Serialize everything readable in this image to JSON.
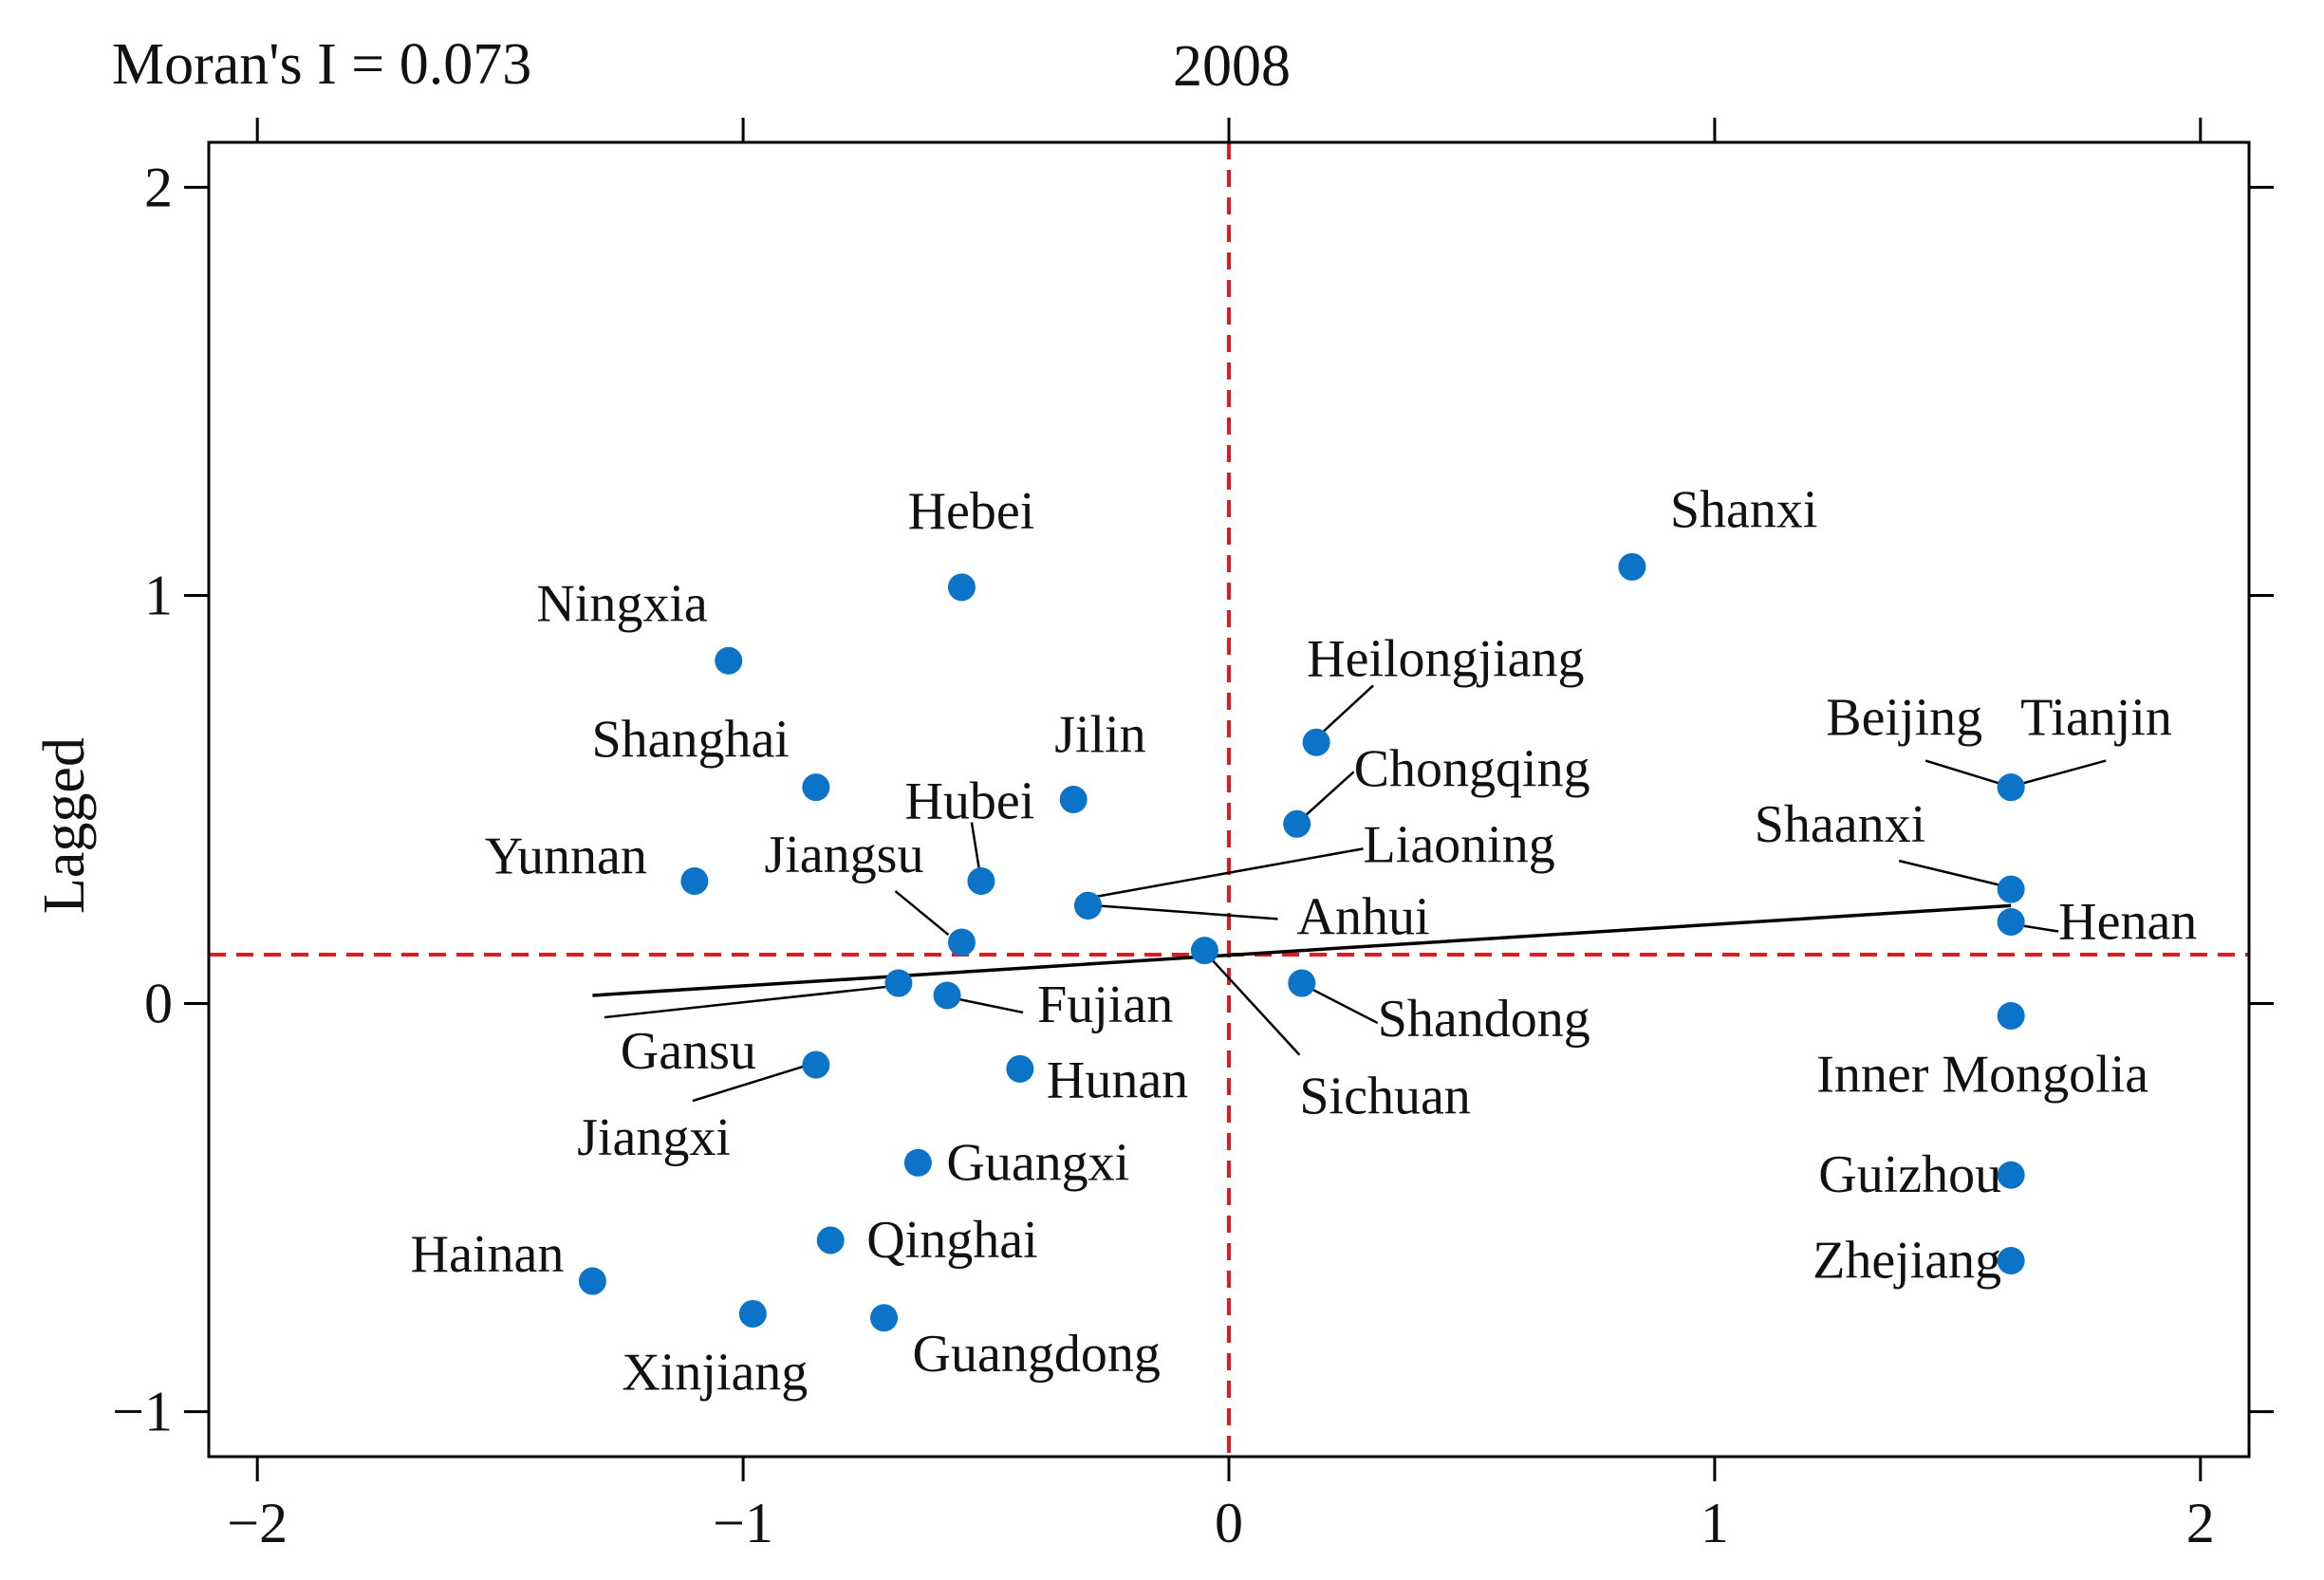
{
  "chart_data": {
    "type": "scatter",
    "subtitle": "Moran's I = 0.073",
    "title": "2008",
    "xlabel": "",
    "ylabel": "Lagged",
    "xlim": [
      -2.1,
      2.1
    ],
    "ylim": [
      -1.11,
      2.11
    ],
    "x_ticks": [
      -2,
      -1,
      0,
      1,
      2
    ],
    "y_ticks": [
      -1,
      0,
      1,
      2
    ],
    "x_tick_labels": [
      "−2",
      "−1",
      "0",
      "1",
      "2"
    ],
    "y_tick_labels": [
      "−1",
      "0",
      "1",
      "2"
    ],
    "reference_lines": {
      "x": 0,
      "y": 0.12
    },
    "fit_line": {
      "x": [
        -1.31,
        1.61
      ],
      "y": [
        0.02,
        0.24
      ]
    },
    "colors": {
      "point": "#0b74c9",
      "reference": "#e31a1c",
      "fit": "#000000",
      "axis": "#000000"
    },
    "points": [
      {
        "name": "Hebei",
        "x": -0.55,
        "y": 1.02
      },
      {
        "name": "Shanxi",
        "x": 0.83,
        "y": 1.07
      },
      {
        "name": "Ningxia",
        "x": -1.03,
        "y": 0.84
      },
      {
        "name": "Heilongjiang",
        "x": 0.18,
        "y": 0.64
      },
      {
        "name": "Shanghai",
        "x": -0.85,
        "y": 0.53
      },
      {
        "name": "Jilin",
        "x": -0.32,
        "y": 0.5
      },
      {
        "name": "Chongqing",
        "x": 0.14,
        "y": 0.44
      },
      {
        "name": "Beijing",
        "x": 1.61,
        "y": 0.53
      },
      {
        "name": "Tianjin",
        "x": 1.61,
        "y": 0.53
      },
      {
        "name": "Hubei",
        "x": -0.51,
        "y": 0.3
      },
      {
        "name": "Yunnan",
        "x": -1.1,
        "y": 0.3
      },
      {
        "name": "Liaoning",
        "x": -0.29,
        "y": 0.24
      },
      {
        "name": "Anhui",
        "x": -0.29,
        "y": 0.24
      },
      {
        "name": "Shaanxi",
        "x": 1.61,
        "y": 0.28
      },
      {
        "name": "Henan",
        "x": 1.61,
        "y": 0.2
      },
      {
        "name": "Jiangsu",
        "x": -0.55,
        "y": 0.15
      },
      {
        "name": "Sichuan",
        "x": -0.05,
        "y": 0.13
      },
      {
        "name": "Gansu",
        "x": -0.68,
        "y": 0.05
      },
      {
        "name": "Shandong",
        "x": 0.15,
        "y": 0.05
      },
      {
        "name": "Fujian",
        "x": -0.58,
        "y": 0.02
      },
      {
        "name": "Inner Mongolia",
        "x": 1.61,
        "y": -0.03
      },
      {
        "name": "Jiangxi",
        "x": -0.85,
        "y": -0.15
      },
      {
        "name": "Hunan",
        "x": -0.43,
        "y": -0.16
      },
      {
        "name": "Guangxi",
        "x": -0.64,
        "y": -0.39
      },
      {
        "name": "Guizhou",
        "x": 1.61,
        "y": -0.42
      },
      {
        "name": "Qinghai",
        "x": -0.82,
        "y": -0.58
      },
      {
        "name": "Zhejiang",
        "x": 1.61,
        "y": -0.63
      },
      {
        "name": "Hainan",
        "x": -1.31,
        "y": -0.68
      },
      {
        "name": "Xinjiang",
        "x": -0.98,
        "y": -0.76
      },
      {
        "name": "Guangdong",
        "x": -0.71,
        "y": -0.77
      }
    ]
  }
}
